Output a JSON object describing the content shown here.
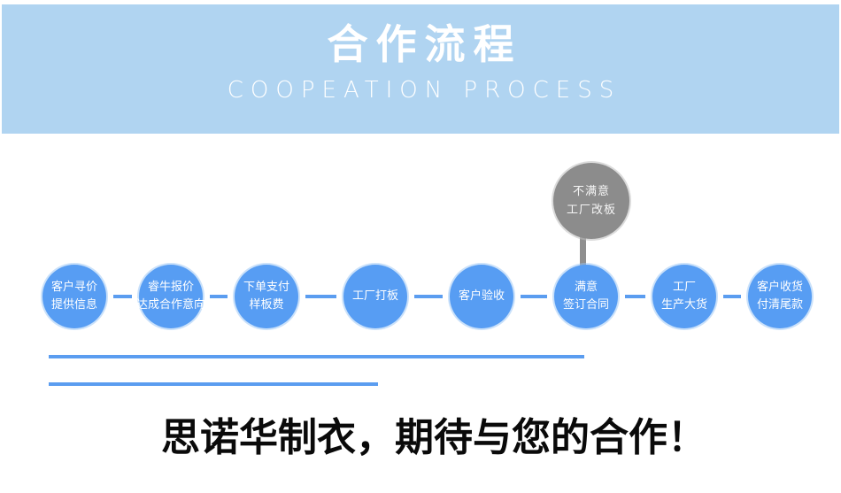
{
  "banner": {
    "title": "合作流程",
    "subtitle": "COOPEATION PROCESS",
    "bg_color": "#b0d4f1",
    "title_color": "#ffffff",
    "subtitle_color": "#ffffff"
  },
  "flow": {
    "steps": [
      {
        "lines": [
          "客户寻价",
          "提供信息"
        ]
      },
      {
        "lines": [
          "睿牛报价",
          "达成合作意向"
        ]
      },
      {
        "lines": [
          "下单支付",
          "样板费"
        ]
      },
      {
        "lines": [
          "工厂打板"
        ]
      },
      {
        "lines": [
          "客户验收"
        ]
      },
      {
        "lines": [
          "满意",
          "签订合同"
        ]
      },
      {
        "lines": [
          "工厂",
          "生产大货"
        ]
      },
      {
        "lines": [
          "客户收货",
          "付清尾款"
        ]
      }
    ],
    "alt_bubble": {
      "lines": [
        "不满意",
        "工厂改板"
      ]
    },
    "colors": {
      "circle_blue": "#579df3",
      "connector_blue": "#5b9df0",
      "gray_circle": "#8c8c8c",
      "gray_connector": "#8f8f8f",
      "underline_blue": "#5598ee"
    }
  },
  "footer": {
    "slogan": "思诺华制衣，期待与您的合作！"
  }
}
